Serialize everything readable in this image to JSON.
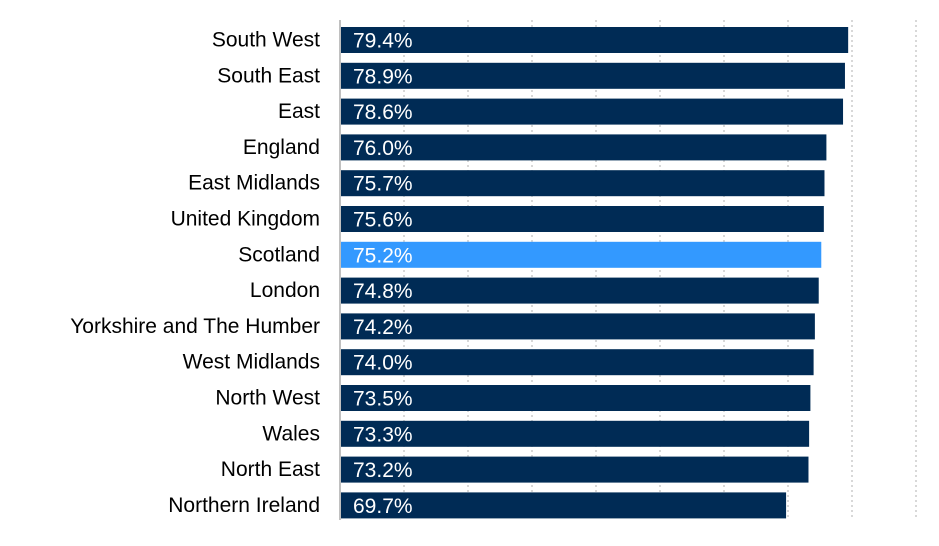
{
  "chart_data": {
    "type": "bar",
    "orientation": "horizontal",
    "categories": [
      "South West",
      "South East",
      "East",
      "England",
      "East Midlands",
      "United Kingdom",
      "Scotland",
      "London",
      "Yorkshire and The Humber",
      "West Midlands",
      "North West",
      "Wales",
      "North East",
      "Northern Ireland"
    ],
    "values": [
      79.4,
      78.9,
      78.6,
      76.0,
      75.7,
      75.6,
      75.2,
      74.8,
      74.2,
      74.0,
      73.5,
      73.3,
      73.2,
      69.7
    ],
    "value_labels": [
      "79.4%",
      "78.9%",
      "78.6%",
      "76.0%",
      "75.7%",
      "75.6%",
      "75.2%",
      "74.8%",
      "74.2%",
      "74.0%",
      "73.5%",
      "73.3%",
      "73.2%",
      "69.7%"
    ],
    "highlight_category": "Scotland",
    "title": "",
    "xlabel": "",
    "ylabel": "",
    "xlim": [
      0,
      90
    ],
    "grid": "vertical-dotted",
    "legend": "none",
    "colors": {
      "bar": "#002b55",
      "highlight": "#3399ff",
      "label_text": "#000000",
      "value_text": "#ffffff",
      "grid": "#b0b0b0"
    }
  }
}
